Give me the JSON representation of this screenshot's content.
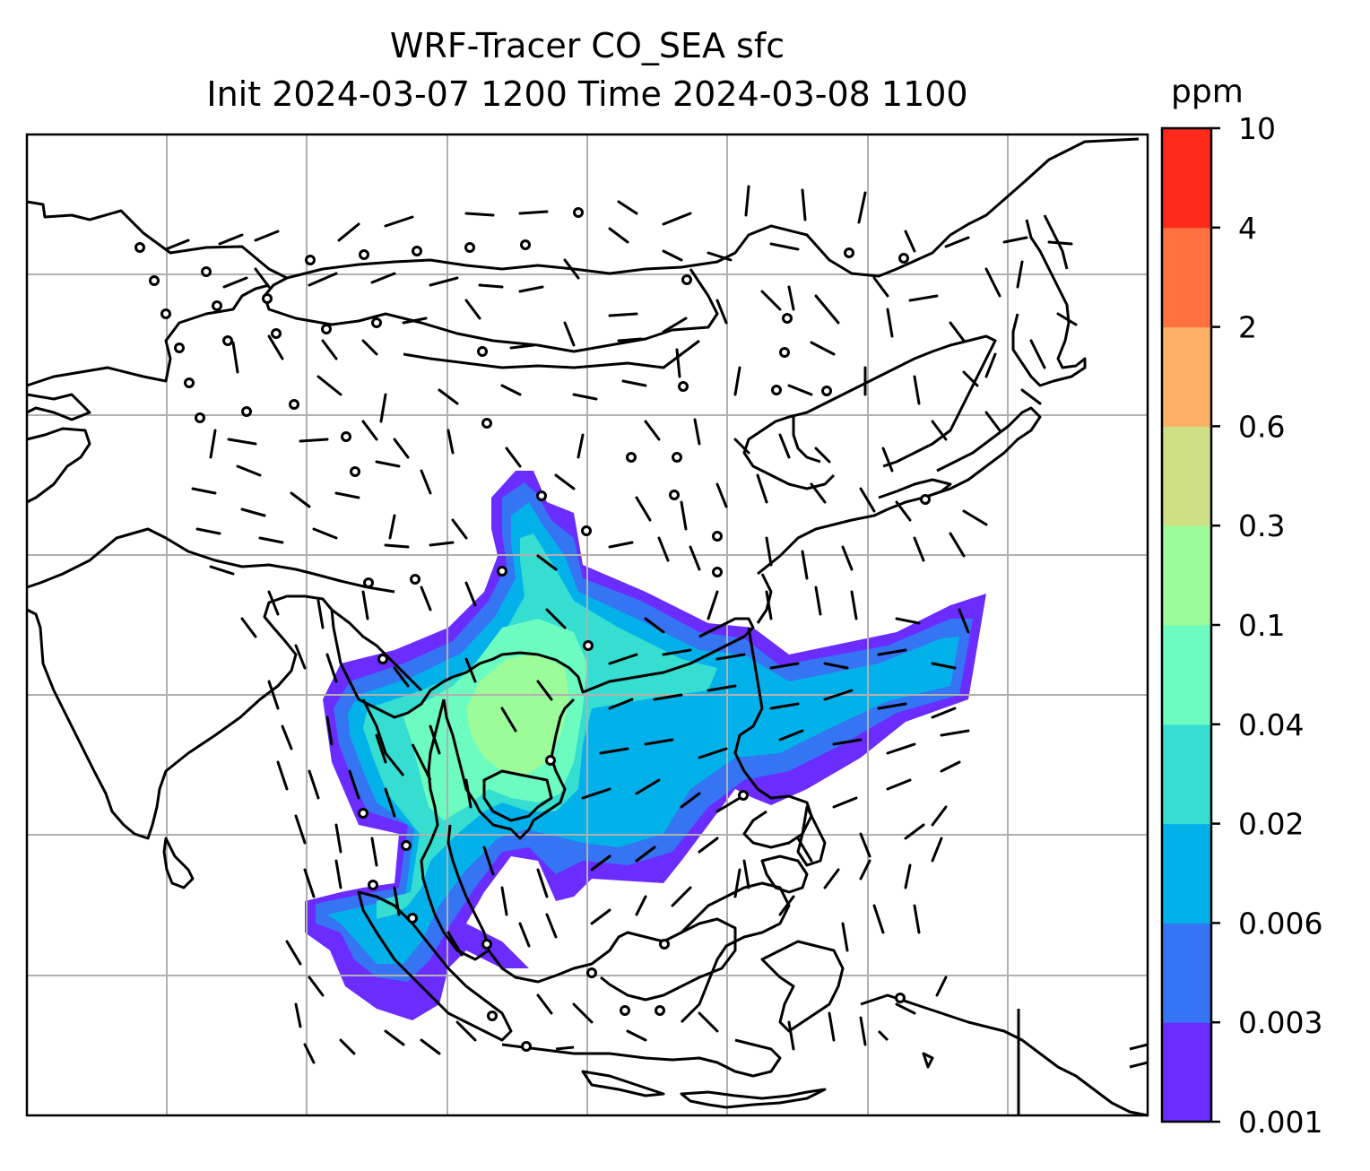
{
  "title": {
    "line1": "WRF-Tracer CO_SEA sfc",
    "line2": "Init 2024-03-07 1200 Time 2024-03-08 1100"
  },
  "colorbar": {
    "unit": "ppm",
    "levels": [
      "0.001",
      "0.003",
      "0.006",
      "0.02",
      "0.04",
      "0.1",
      "0.3",
      "0.6",
      "2",
      "4",
      "10"
    ],
    "colors": [
      "#6a2cff",
      "#3574f2",
      "#03b1ea",
      "#35ded0",
      "#6cfcc0",
      "#9bfc99",
      "#cee086",
      "#feb165",
      "#ff7140",
      "#ff2a1b"
    ]
  },
  "map": {
    "projection": "lat-lon",
    "gridlines": true,
    "gridline_color": "#b0b0b0",
    "coastline_color": "#000000",
    "field": "CO_SEA tracer concentration",
    "vectors": "wind barbs"
  }
}
